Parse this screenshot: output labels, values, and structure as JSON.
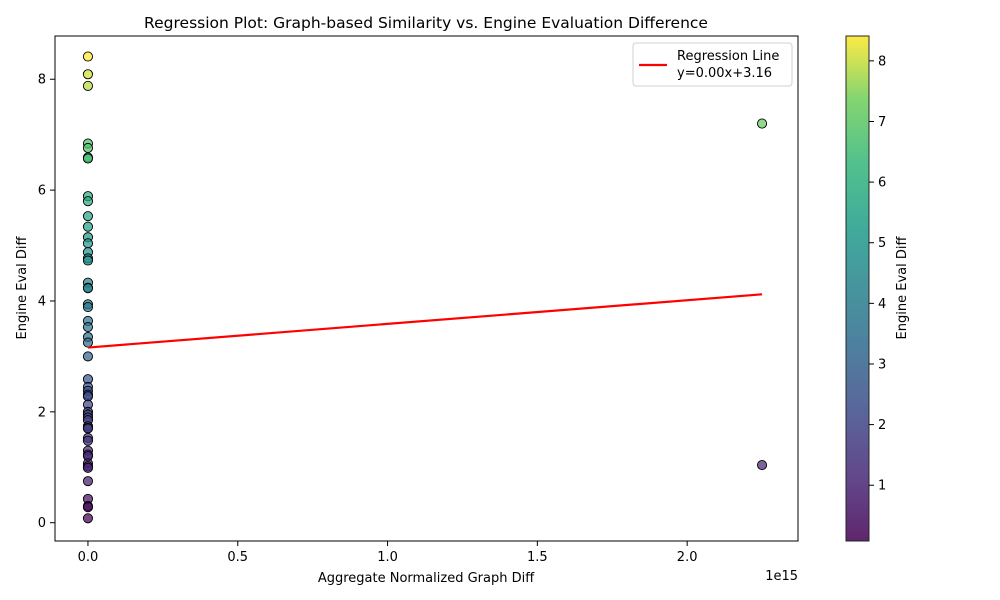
{
  "chart_data": {
    "type": "scatter",
    "title": "Regression Plot: Graph-based Similarity vs. Engine Evaluation Difference",
    "xlabel": "Aggregate Normalized Graph Diff",
    "ylabel": "Engine Eval Diff",
    "x_offset_label": "1e15",
    "x_scale": 1000000000000000.0,
    "xlim": [
      -0.11,
      2.37
    ],
    "ylim": [
      -0.33,
      8.78
    ],
    "x_ticks": [
      0.0,
      0.5,
      1.0,
      1.5,
      2.0
    ],
    "x_tick_labels": [
      "0.0",
      "0.5",
      "1.0",
      "1.5",
      "2.0"
    ],
    "y_ticks": [
      0,
      2,
      4,
      6,
      8
    ],
    "y_tick_labels": [
      "0",
      "2",
      "4",
      "6",
      "8"
    ],
    "colormap": "viridis",
    "grid": false,
    "points": [
      {
        "x": 0.0,
        "y": 8.41
      },
      {
        "x": 0.0,
        "y": 8.09
      },
      {
        "x": 0.0,
        "y": 7.88
      },
      {
        "x": 0.0,
        "y": 6.84
      },
      {
        "x": 0.0,
        "y": 6.76
      },
      {
        "x": 0.0,
        "y": 6.59
      },
      {
        "x": 0.0,
        "y": 6.57
      },
      {
        "x": 0.0,
        "y": 5.89
      },
      {
        "x": 0.0,
        "y": 5.8
      },
      {
        "x": 0.0,
        "y": 5.53
      },
      {
        "x": 0.0,
        "y": 5.34
      },
      {
        "x": 0.0,
        "y": 5.15
      },
      {
        "x": 0.0,
        "y": 5.04
      },
      {
        "x": 0.0,
        "y": 4.88
      },
      {
        "x": 0.0,
        "y": 4.77
      },
      {
        "x": 0.0,
        "y": 4.73
      },
      {
        "x": 0.0,
        "y": 4.33
      },
      {
        "x": 0.0,
        "y": 4.24
      },
      {
        "x": 0.0,
        "y": 4.23
      },
      {
        "x": 0.0,
        "y": 3.94
      },
      {
        "x": 0.0,
        "y": 3.89
      },
      {
        "x": 0.0,
        "y": 3.64
      },
      {
        "x": 0.0,
        "y": 3.53
      },
      {
        "x": 0.0,
        "y": 3.35
      },
      {
        "x": 0.0,
        "y": 3.25
      },
      {
        "x": 0.0,
        "y": 3.0
      },
      {
        "x": 0.0,
        "y": 2.59
      },
      {
        "x": 0.0,
        "y": 2.45
      },
      {
        "x": 0.0,
        "y": 2.38
      },
      {
        "x": 0.0,
        "y": 2.31
      },
      {
        "x": 0.0,
        "y": 2.28
      },
      {
        "x": 0.0,
        "y": 2.13
      },
      {
        "x": 0.0,
        "y": 2.0
      },
      {
        "x": 0.0,
        "y": 1.95
      },
      {
        "x": 0.0,
        "y": 1.9
      },
      {
        "x": 0.0,
        "y": 1.85
      },
      {
        "x": 0.0,
        "y": 1.74
      },
      {
        "x": 0.0,
        "y": 1.71
      },
      {
        "x": 0.0,
        "y": 1.7
      },
      {
        "x": 0.0,
        "y": 1.53
      },
      {
        "x": 0.0,
        "y": 1.48
      },
      {
        "x": 0.0,
        "y": 1.3
      },
      {
        "x": 0.0,
        "y": 1.23
      },
      {
        "x": 0.0,
        "y": 1.2
      },
      {
        "x": 0.0,
        "y": 1.07
      },
      {
        "x": 0.0,
        "y": 1.02
      },
      {
        "x": 0.0,
        "y": 0.99
      },
      {
        "x": 0.0,
        "y": 0.75
      },
      {
        "x": 0.0,
        "y": 0.43
      },
      {
        "x": 0.0,
        "y": 0.3
      },
      {
        "x": 0.0,
        "y": 0.28
      },
      {
        "x": 0.0,
        "y": 0.08
      },
      {
        "x": 2.25,
        "y": 7.2
      },
      {
        "x": 2.25,
        "y": 1.04
      }
    ],
    "regression": {
      "label": "Regression Line\ny=0.00x+3.16",
      "x": [
        0.0,
        2.25
      ],
      "y": [
        3.16,
        4.12
      ],
      "color": "#ff0000"
    },
    "legend": {
      "placement": "top-right",
      "entries": [
        "Regression Line",
        "y=0.00x+3.16"
      ]
    },
    "colorbar": {
      "label": "Engine Eval Diff",
      "range": [
        0.08,
        8.41
      ],
      "ticks": [
        1,
        2,
        3,
        4,
        5,
        6,
        7,
        8
      ],
      "tick_labels": [
        "1",
        "2",
        "3",
        "4",
        "5",
        "6",
        "7",
        "8"
      ]
    }
  }
}
